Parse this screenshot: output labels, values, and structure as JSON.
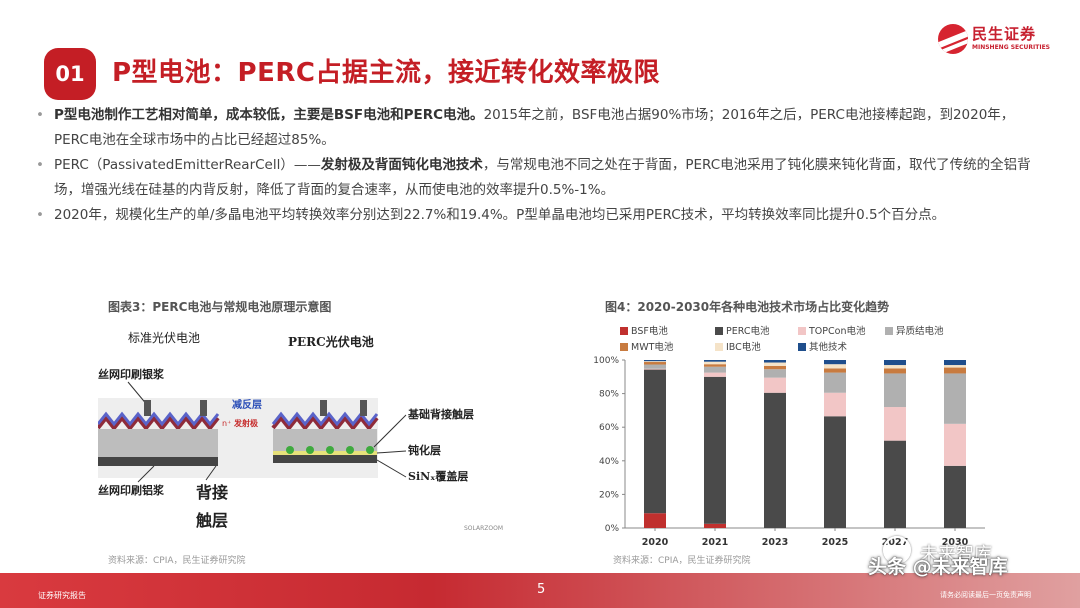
{
  "logo": {
    "cn": "民生证券",
    "en": "MINSHENG SECURITIES"
  },
  "badge": "01",
  "title": "P型电池：PERC占据主流，接近转化效率极限",
  "bullets": [
    {
      "bold": "P型电池制作工艺相对简单，成本较低，主要是BSF电池和PERC电池。",
      "text": "2015年之前，BSF电池占据90%市场；2016年之后，PERC电池接棒起跑，到2020年，PERC电池在全球市场中的占比已经超过85%。"
    },
    {
      "pre": "PERC（PassivatedEmitterRearCell）——",
      "bold": "发射极及背面钝化电池技术",
      "text": "，与常规电池不同之处在于背面，PERC电池采用了钝化膜来钝化背面，取代了传统的全铝背场，增强光线在硅基的内背反射，降低了背面的复合速率，从而使电池的效率提升0.5%-1%。"
    },
    {
      "text": "2020年，规模化生产的单/多晶电池平均转换效率分别达到22.7%和19.4%。P型单晶电池均已采用PERC技术，平均转换效率同比提升0.5个百分点。"
    }
  ],
  "fig3": {
    "title": "图表3：PERC电池与常规电池原理示意图",
    "label_std": "标准光伏电池",
    "label_perc": "PERC光伏电池",
    "silver": "丝网印刷银浆",
    "antireflect": "减反层",
    "emitter_n": "n⁺",
    "emitter": "发射极",
    "base_contact": "基础背接触层",
    "passivation": "钝化层",
    "sinx": "SiNₓ覆盖层",
    "aluminum": "丝网印刷铝浆",
    "back_contact_1": "背接",
    "back_contact_2": "触层",
    "credit": "SOLARZOOM",
    "source": "资料来源：CPIA，民生证券研究院"
  },
  "fig4": {
    "title": "图4：2020-2030年各种电池技术市场占比变化趋势",
    "source": "资料来源：CPIA，民生证券研究院"
  },
  "chart_data": {
    "type": "bar",
    "stacked": true,
    "categories": [
      "2020",
      "2021",
      "2023",
      "2025",
      "2027",
      "2030"
    ],
    "yticks": [
      "0%",
      "20%",
      "40%",
      "60%",
      "80%",
      "100%"
    ],
    "ylim": [
      0,
      100
    ],
    "series": [
      {
        "name": "BSF电池",
        "color": "#c0302e",
        "values": [
          8.8,
          2.5,
          0,
          0,
          0,
          0
        ]
      },
      {
        "name": "PERC电池",
        "color": "#4a4a4a",
        "values": [
          85.5,
          87.5,
          80.5,
          66.5,
          52,
          37
        ]
      },
      {
        "name": "TOPCon电池",
        "color": "#f2c6c6",
        "values": [
          0.5,
          2.5,
          9,
          14,
          20,
          25
        ]
      },
      {
        "name": "异质结电池",
        "color": "#b0b0b0",
        "values": [
          2.5,
          3.5,
          5,
          12,
          20,
          30
        ]
      },
      {
        "name": "MWT电池",
        "color": "#c87b40",
        "values": [
          1.5,
          1.5,
          2,
          2.5,
          3,
          3.5
        ]
      },
      {
        "name": "IBC电池",
        "color": "#f5e3c8",
        "values": [
          0.5,
          1.5,
          2,
          2.5,
          2,
          1.5
        ]
      },
      {
        "name": "其他技术",
        "color": "#1f4e8c",
        "values": [
          0.7,
          1,
          1.5,
          2.5,
          3,
          3
        ]
      }
    ]
  },
  "footer": {
    "left": "证券研究报告",
    "page": "5",
    "right": "请务必阅读最后一页免责声明"
  },
  "watermark": {
    "main": "头条 @未来智库",
    "side": "未来智库"
  }
}
